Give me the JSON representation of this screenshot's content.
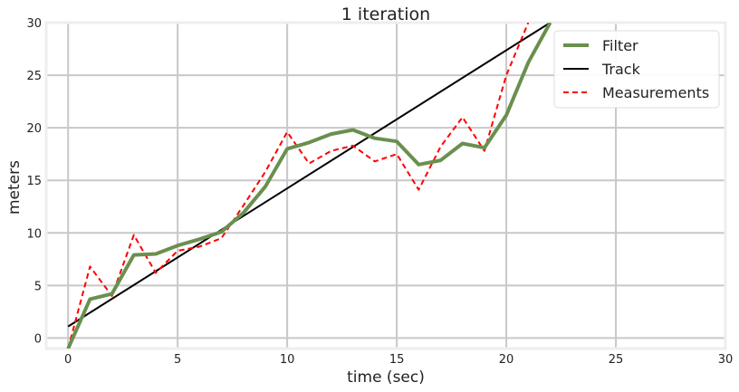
{
  "chart_data": {
    "type": "line",
    "title": "1 iteration",
    "xlabel": "time (sec)",
    "ylabel": "meters",
    "xlim": [
      -1,
      30
    ],
    "ylim": [
      -1,
      30
    ],
    "xticks": [
      0,
      5,
      10,
      15,
      20,
      25,
      30
    ],
    "yticks": [
      0,
      5,
      10,
      15,
      20,
      25,
      30
    ],
    "grid": true,
    "legend_position": "top-right",
    "series": [
      {
        "name": "Filter",
        "color": "#6a8f4e",
        "style": "solid-thick",
        "x": [
          0,
          1,
          2,
          3,
          4,
          5,
          6,
          7,
          8,
          9,
          10,
          11,
          12,
          13,
          14,
          15,
          16,
          17,
          18,
          19,
          20,
          21,
          22
        ],
        "y": [
          -1.0,
          3.7,
          4.2,
          7.9,
          8.0,
          8.8,
          9.4,
          10.1,
          11.9,
          14.4,
          18.0,
          18.6,
          19.4,
          19.8,
          19.0,
          18.7,
          16.5,
          16.9,
          18.5,
          18.1,
          21.2,
          26.2,
          30.0
        ]
      },
      {
        "name": "Track",
        "color": "#000000",
        "style": "solid",
        "x": [
          0,
          22
        ],
        "y": [
          1.1,
          30.0
        ]
      },
      {
        "name": "Measurements",
        "color": "#ff0000",
        "style": "dashed",
        "x": [
          0,
          1,
          2,
          3,
          4,
          5,
          6,
          7,
          8,
          9,
          10,
          11,
          12,
          13,
          14,
          15,
          16,
          17,
          18,
          19,
          20,
          21
        ],
        "y": [
          -1.0,
          6.8,
          4.0,
          9.8,
          6.2,
          8.3,
          8.7,
          9.5,
          12.6,
          15.8,
          19.6,
          16.6,
          17.8,
          18.3,
          16.8,
          17.5,
          14.1,
          18.2,
          21.0,
          17.8,
          25.0,
          30.0
        ]
      }
    ]
  }
}
